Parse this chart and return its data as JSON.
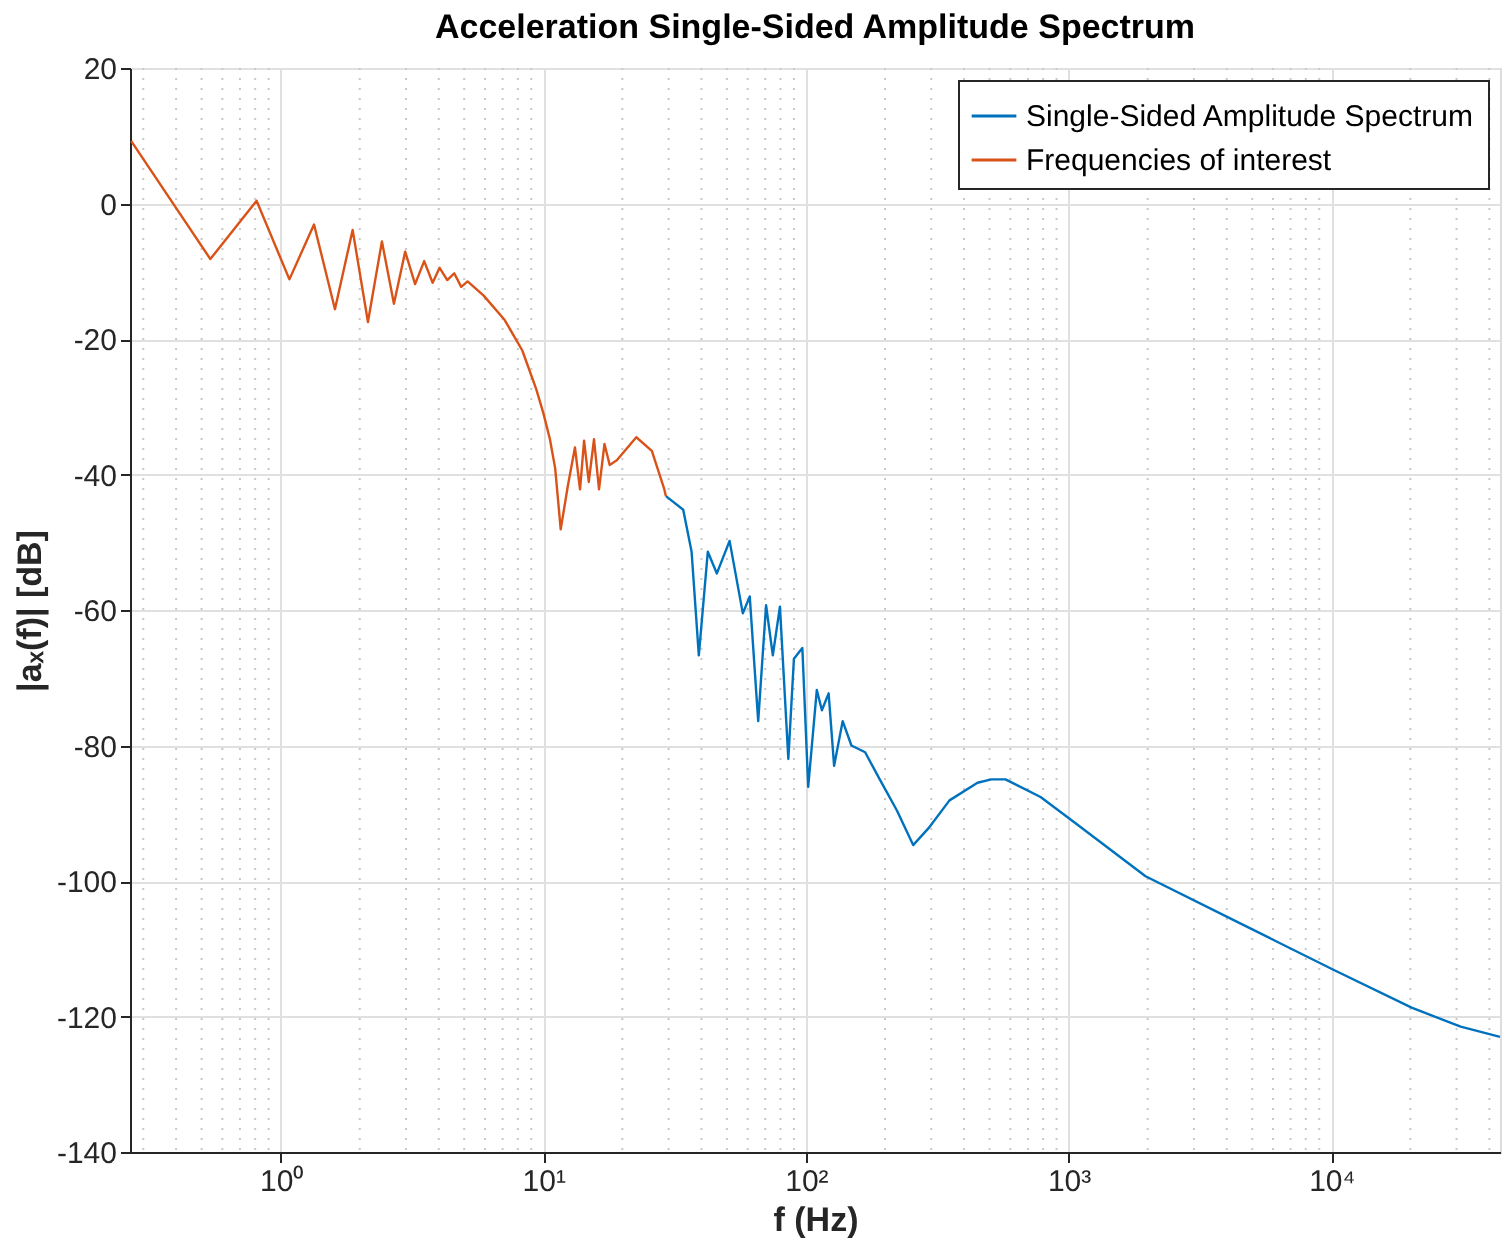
{
  "chart_data": {
    "type": "line",
    "title": "Acceleration Single-Sided Amplitude Spectrum",
    "xlabel": "f (Hz)",
    "ylabel": "|aₓ(f)| [dB]",
    "log": "x",
    "grid": true,
    "legend": "top right",
    "marker": "none",
    "line_style": "solid",
    "xlim": [
      0.267,
      43900
    ],
    "ylim": [
      -140,
      20
    ],
    "xticks": [
      {
        "value": 1,
        "label": "10⁰"
      },
      {
        "value": 10,
        "label": "10¹"
      },
      {
        "value": 100,
        "label": "10²"
      },
      {
        "value": 1000,
        "label": "10³"
      },
      {
        "value": 10000,
        "label": "10⁴"
      }
    ],
    "yticks": [
      -140,
      -120,
      -100,
      -80,
      -60,
      -40,
      -20,
      0,
      20
    ],
    "series": [
      {
        "name": "Single-Sided Amplitude Spectrum",
        "color": "#0072bd",
        "x": [
          29.3,
          34.1,
          36.7,
          39.1,
          42.3,
          45.8,
          51.2,
          57.5,
          61.1,
          65.8,
          70.5,
          74.8,
          79.6,
          85.7,
          90.0,
          96.9,
          102,
          110,
          115,
          122,
          128,
          138,
          149,
          168,
          191,
          222,
          256,
          293,
          352,
          450,
          508,
          575,
          782,
          1000,
          1963,
          4365,
          10190,
          20230,
          31100,
          43900
        ],
        "values": [
          -43.2,
          -45.2,
          -51.4,
          -66.7,
          -51.4,
          -54.6,
          -49.8,
          -60.5,
          -58.0,
          -76.4,
          -59.3,
          -66.7,
          -59.5,
          -82.0,
          -67.2,
          -65.6,
          -86.1,
          -71.8,
          -74.8,
          -72.3,
          -83.0,
          -76.4,
          -80.0,
          -81.0,
          -85.0,
          -89.6,
          -94.7,
          -92.2,
          -88.1,
          -85.5,
          -85.0,
          -85.0,
          -87.6,
          -90.7,
          -99.3,
          -106,
          -113.1,
          -118.7,
          -121.5,
          -123.0
        ]
      },
      {
        "name": "Frequencies of interest",
        "color": "#d95319",
        "x": [
          0.27,
          0.54,
          0.81,
          1.08,
          1.34,
          1.61,
          1.88,
          2.15,
          2.43,
          2.7,
          2.98,
          3.25,
          3.52,
          3.79,
          4.03,
          4.31,
          4.58,
          4.87,
          5.15,
          5.93,
          7.13,
          8.32,
          9.4,
          10.0,
          10.6,
          11.1,
          11.65,
          12.4,
          13.2,
          13.8,
          14.3,
          14.9,
          15.6,
          16.3,
          17.1,
          17.9,
          19.05,
          22.6,
          25.9,
          28.9,
          29.3
        ],
        "values": [
          9.2,
          -8.2,
          0.4,
          -11.2,
          -3.1,
          -15.6,
          -3.9,
          -17.5,
          -5.6,
          -14.8,
          -7.1,
          -11.9,
          -8.5,
          -11.7,
          -9.5,
          -11.3,
          -10.3,
          -12.3,
          -11.5,
          -13.6,
          -17.2,
          -21.7,
          -27.4,
          -30.9,
          -34.8,
          -39.1,
          -48.1,
          -41.7,
          -36.0,
          -42.2,
          -35.0,
          -41.1,
          -34.8,
          -42.2,
          -35.5,
          -38.6,
          -37.9,
          -34.5,
          -36.5,
          -42.2,
          -43.2
        ]
      }
    ]
  }
}
